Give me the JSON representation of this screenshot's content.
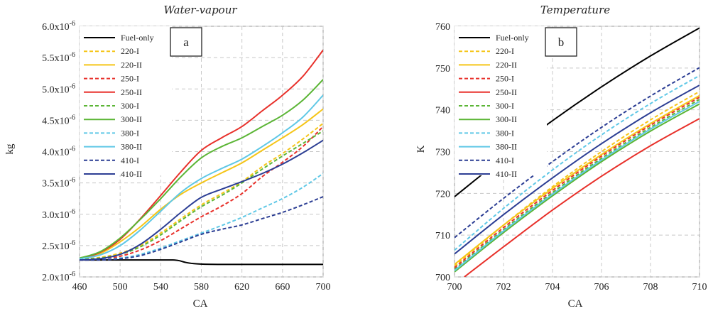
{
  "chart_data": [
    {
      "type": "line",
      "title": "Water-vapour",
      "xlabel": "CA",
      "ylabel": "kg",
      "panel_label": "a",
      "xlim": [
        460,
        700
      ],
      "ylim": [
        2e-06,
        6e-06
      ],
      "xticks": [
        460,
        500,
        540,
        580,
        620,
        660,
        700
      ],
      "yticks": [
        {
          "v": 2e-06,
          "m": "2.0x10",
          "e": "-6"
        },
        {
          "v": 2.5e-06,
          "m": "2.5x10",
          "e": "-6"
        },
        {
          "v": 3e-06,
          "m": "3.0x10",
          "e": "-6"
        },
        {
          "v": 3.5e-06,
          "m": "3.5x10",
          "e": "-6"
        },
        {
          "v": 4e-06,
          "m": "4.0x10",
          "e": "-6"
        },
        {
          "v": 4.5e-06,
          "m": "4.5x10",
          "e": "-6"
        },
        {
          "v": 5e-06,
          "m": "5.0x10",
          "e": "-6"
        },
        {
          "v": 5.5e-06,
          "m": "5.5x10",
          "e": "-6"
        },
        {
          "v": 6e-06,
          "m": "6.0x10",
          "e": "-6"
        }
      ],
      "grid": true,
      "legend_position": "top-left",
      "series": [
        {
          "name": "Fuel-only",
          "color": "#000000",
          "dash": false,
          "x": [
            460,
            520,
            545,
            552,
            558,
            565,
            575,
            600,
            700
          ],
          "y": [
            2.27e-06,
            2.27e-06,
            2.27e-06,
            2.27e-06,
            2.26e-06,
            2.23e-06,
            2.21e-06,
            2.2e-06,
            2.2e-06
          ]
        },
        {
          "name": "220-I",
          "color": "#f5c518",
          "dash": true,
          "x": [
            460,
            480,
            500,
            520,
            540,
            560,
            580,
            600,
            620,
            640,
            660,
            680,
            700
          ],
          "y": [
            2.28e-06,
            2.31e-06,
            2.38e-06,
            2.5e-06,
            2.7e-06,
            2.93e-06,
            3.15e-06,
            3.33e-06,
            3.52e-06,
            3.76e-06,
            3.97e-06,
            4.2e-06,
            4.45e-06
          ]
        },
        {
          "name": "220-II",
          "color": "#f5c518",
          "dash": false,
          "x": [
            460,
            480,
            500,
            520,
            540,
            560,
            580,
            600,
            620,
            640,
            660,
            680,
            700
          ],
          "y": [
            2.29e-06,
            2.37e-06,
            2.56e-06,
            2.8e-06,
            3.08e-06,
            3.32e-06,
            3.5e-06,
            3.66e-06,
            3.82e-06,
            4.02e-06,
            4.22e-06,
            4.43e-06,
            4.68e-06
          ]
        },
        {
          "name": "250-I",
          "color": "#e8302a",
          "dash": true,
          "x": [
            460,
            480,
            500,
            520,
            540,
            560,
            580,
            600,
            620,
            640,
            660,
            680,
            700
          ],
          "y": [
            2.27e-06,
            2.28e-06,
            2.33e-06,
            2.43e-06,
            2.58e-06,
            2.77e-06,
            2.96e-06,
            3.13e-06,
            3.33e-06,
            3.6e-06,
            3.83e-06,
            4.08e-06,
            4.4e-06
          ]
        },
        {
          "name": "250-II",
          "color": "#e8302a",
          "dash": false,
          "x": [
            460,
            480,
            500,
            520,
            540,
            560,
            580,
            600,
            620,
            640,
            660,
            680,
            700
          ],
          "y": [
            2.29e-06,
            2.39e-06,
            2.6e-06,
            2.93e-06,
            3.3e-06,
            3.68e-06,
            4.02e-06,
            4.22e-06,
            4.4e-06,
            4.65e-06,
            4.9e-06,
            5.2e-06,
            5.62e-06
          ]
        },
        {
          "name": "300-I",
          "color": "#5bb535",
          "dash": true,
          "x": [
            460,
            480,
            500,
            520,
            540,
            560,
            580,
            600,
            620,
            640,
            660,
            680,
            700
          ],
          "y": [
            2.28e-06,
            2.3e-06,
            2.36e-06,
            2.48e-06,
            2.67e-06,
            2.9e-06,
            3.12e-06,
            3.3e-06,
            3.5e-06,
            3.72e-06,
            3.93e-06,
            4.13e-06,
            4.33e-06
          ]
        },
        {
          "name": "300-II",
          "color": "#5bb535",
          "dash": false,
          "x": [
            460,
            480,
            500,
            520,
            540,
            560,
            580,
            600,
            620,
            640,
            660,
            680,
            700
          ],
          "y": [
            2.3e-06,
            2.4e-06,
            2.62e-06,
            2.92e-06,
            3.25e-06,
            3.6e-06,
            3.9e-06,
            4.08e-06,
            4.22e-06,
            4.4e-06,
            4.58e-06,
            4.82e-06,
            5.15e-06
          ]
        },
        {
          "name": "380-I",
          "color": "#5fc8e6",
          "dash": true,
          "x": [
            460,
            480,
            500,
            520,
            540,
            560,
            580,
            600,
            620,
            640,
            660,
            680,
            700
          ],
          "y": [
            2.27e-06,
            2.28e-06,
            2.3e-06,
            2.36e-06,
            2.46e-06,
            2.58e-06,
            2.7e-06,
            2.82e-06,
            2.95e-06,
            3.1e-06,
            3.25e-06,
            3.43e-06,
            3.65e-06
          ]
        },
        {
          "name": "380-II",
          "color": "#5fc8e6",
          "dash": false,
          "x": [
            460,
            480,
            500,
            520,
            540,
            560,
            580,
            600,
            620,
            640,
            660,
            680,
            700
          ],
          "y": [
            2.29e-06,
            2.35e-06,
            2.5e-06,
            2.75e-06,
            3.05e-06,
            3.35e-06,
            3.57e-06,
            3.73e-06,
            3.88e-06,
            4.08e-06,
            4.3e-06,
            4.55e-06,
            4.9e-06
          ]
        },
        {
          "name": "410-I",
          "color": "#2c3e94",
          "dash": true,
          "x": [
            460,
            480,
            500,
            520,
            540,
            560,
            580,
            600,
            620,
            640,
            660,
            680,
            700
          ],
          "y": [
            2.27e-06,
            2.27e-06,
            2.29e-06,
            2.34e-06,
            2.44e-06,
            2.56e-06,
            2.68e-06,
            2.76e-06,
            2.83e-06,
            2.93e-06,
            3.03e-06,
            3.15e-06,
            3.28e-06
          ]
        },
        {
          "name": "410-II",
          "color": "#2c3e94",
          "dash": false,
          "x": [
            460,
            480,
            500,
            520,
            540,
            560,
            580,
            600,
            620,
            640,
            660,
            680,
            700
          ],
          "y": [
            2.27e-06,
            2.29e-06,
            2.36e-06,
            2.52e-06,
            2.76e-06,
            3.03e-06,
            3.27e-06,
            3.4e-06,
            3.52e-06,
            3.65e-06,
            3.8e-06,
            3.98e-06,
            4.18e-06
          ]
        }
      ]
    },
    {
      "type": "line",
      "title": "Temperature",
      "xlabel": "CA",
      "ylabel": "K",
      "panel_label": "b",
      "xlim": [
        700,
        710
      ],
      "ylim": [
        700,
        760
      ],
      "xticks": [
        700,
        702,
        704,
        706,
        708,
        710
      ],
      "yticks": [
        {
          "v": 700,
          "m": "700",
          "e": ""
        },
        {
          "v": 710,
          "m": "710",
          "e": ""
        },
        {
          "v": 720,
          "m": "720",
          "e": ""
        },
        {
          "v": 730,
          "m": "730",
          "e": ""
        },
        {
          "v": 740,
          "m": "740",
          "e": ""
        },
        {
          "v": 750,
          "m": "750",
          "e": ""
        },
        {
          "v": 760,
          "m": "760",
          "e": ""
        }
      ],
      "grid": true,
      "legend_position": "top-left",
      "series": [
        {
          "name": "Fuel-only",
          "color": "#000000",
          "dash": false,
          "x": [
            700,
            702,
            704,
            706,
            708,
            710
          ],
          "y": [
            719.2,
            728.6,
            737.4,
            745.5,
            752.9,
            759.6
          ]
        },
        {
          "name": "220-I",
          "color": "#f5c518",
          "dash": true,
          "x": [
            700,
            702,
            704,
            706,
            708,
            710
          ],
          "y": [
            702.6,
            712.4,
            721.6,
            730.0,
            737.6,
            744.4
          ]
        },
        {
          "name": "220-II",
          "color": "#f5c518",
          "dash": false,
          "x": [
            700,
            702,
            704,
            706,
            708,
            710
          ],
          "y": [
            703.0,
            712.4,
            721.2,
            729.3,
            736.7,
            743.4
          ]
        },
        {
          "name": "250-I",
          "color": "#e8302a",
          "dash": true,
          "x": [
            700,
            702,
            704,
            706,
            708,
            710
          ],
          "y": [
            702.2,
            711.8,
            720.7,
            728.9,
            736.3,
            743.0
          ]
        },
        {
          "name": "250-II",
          "color": "#e8302a",
          "dash": false,
          "x": [
            700.4,
            702,
            704,
            706,
            708,
            710
          ],
          "y": [
            700.0,
            707.2,
            716.0,
            724.1,
            731.4,
            737.9
          ]
        },
        {
          "name": "300-I",
          "color": "#5bb535",
          "dash": true,
          "x": [
            700,
            702,
            704,
            706,
            708,
            710
          ],
          "y": [
            701.8,
            711.3,
            720.2,
            728.4,
            735.8,
            742.5
          ]
        },
        {
          "name": "300-II",
          "color": "#5bb535",
          "dash": false,
          "x": [
            700,
            702,
            704,
            706,
            708,
            710
          ],
          "y": [
            701.2,
            710.6,
            719.4,
            727.6,
            734.9,
            741.4
          ]
        },
        {
          "name": "380-I",
          "color": "#5fc8e6",
          "dash": true,
          "x": [
            700,
            702,
            704,
            706,
            708,
            710
          ],
          "y": [
            706.4,
            716.4,
            725.6,
            734.0,
            741.5,
            748.2
          ]
        },
        {
          "name": "380-II",
          "color": "#5fc8e6",
          "dash": false,
          "x": [
            700,
            702,
            704,
            706,
            708,
            710
          ],
          "y": [
            701.5,
            711.0,
            719.8,
            728.0,
            735.4,
            742.0
          ]
        },
        {
          "name": "410-I",
          "color": "#2c3e94",
          "dash": true,
          "x": [
            700,
            702,
            704,
            706,
            708,
            710
          ],
          "y": [
            709.4,
            718.8,
            727.6,
            735.8,
            743.3,
            750.1
          ]
        },
        {
          "name": "410-II",
          "color": "#2c3e94",
          "dash": false,
          "x": [
            700,
            702,
            704,
            706,
            708,
            710
          ],
          "y": [
            705.5,
            714.9,
            723.7,
            731.9,
            739.3,
            745.9
          ]
        }
      ]
    }
  ]
}
